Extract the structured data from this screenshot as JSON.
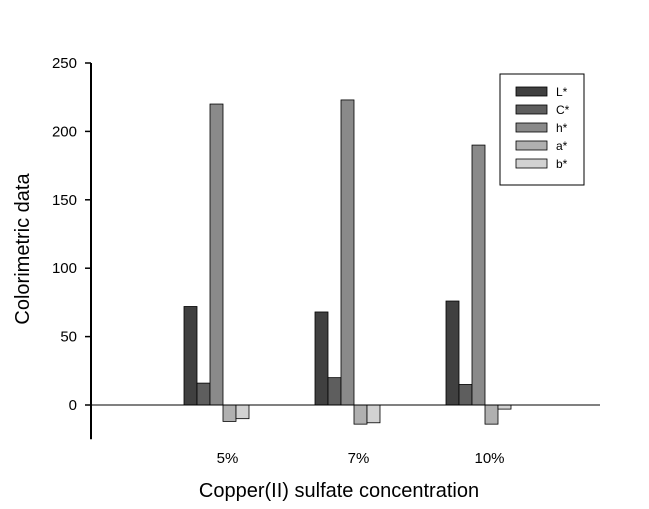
{
  "chart_data": {
    "type": "bar",
    "title": "",
    "xlabel": "Copper(II) sulfate concentration",
    "ylabel": "Colorimetric data",
    "categories": [
      "5%",
      "7%",
      "10%"
    ],
    "ylim": [
      -25,
      250
    ],
    "yticks": [
      0,
      50,
      100,
      150,
      200,
      250
    ],
    "grid": false,
    "legend_position": "top-right",
    "series": [
      {
        "name": "L*",
        "color": "#404040",
        "values": [
          72,
          68,
          76
        ]
      },
      {
        "name": "C*",
        "color": "#5e5e5e",
        "values": [
          16,
          20,
          15
        ]
      },
      {
        "name": "h*",
        "color": "#8a8a8a",
        "values": [
          220,
          223,
          190
        ]
      },
      {
        "name": "a*",
        "color": "#b0b0b0",
        "values": [
          -12,
          -14,
          -14
        ]
      },
      {
        "name": "b*",
        "color": "#d2d2d2",
        "values": [
          -10,
          -13,
          -3
        ]
      }
    ]
  }
}
